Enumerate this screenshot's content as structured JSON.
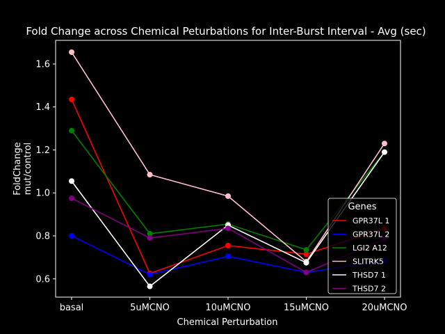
{
  "chart_data": {
    "type": "line",
    "title": "Fold Change across Chemical Peturbations for Inter-Burst Interval - Avg (sec)",
    "xlabel": "Chemical Perturbation",
    "ylabel": "FoldChange\nmut/control",
    "categories": [
      "basal",
      "5uMCNO",
      "10uMCNO",
      "15uMCNO",
      "20uMCNO"
    ],
    "ylim": [
      0.515,
      1.71
    ],
    "yticks": [
      0.6,
      0.8,
      1.0,
      1.2,
      1.4,
      1.6
    ],
    "ytick_labels": [
      "0.6",
      "0.8",
      "1.0",
      "1.2",
      "1.4",
      "1.6"
    ],
    "grid": false,
    "legend": {
      "title": "Genes",
      "position": "lower-right"
    },
    "series": [
      {
        "name": "GPR37L 1",
        "color": "#ff0000",
        "values": [
          1.435,
          0.625,
          0.755,
          0.715,
          0.835
        ]
      },
      {
        "name": "GPR37L 2",
        "color": "#0000ff",
        "values": [
          0.8,
          0.62,
          0.705,
          0.63,
          0.685
        ]
      },
      {
        "name": "LGI2 A12",
        "color": "#008000",
        "values": [
          1.29,
          0.81,
          0.855,
          0.735,
          1.19
        ]
      },
      {
        "name": "SLITRK5",
        "color": "#ffc0cb",
        "values": [
          1.655,
          1.085,
          0.985,
          0.68,
          1.23
        ]
      },
      {
        "name": "THSD7 1",
        "color": "#ffffff",
        "values": [
          1.055,
          0.565,
          0.85,
          0.675,
          1.19
        ]
      },
      {
        "name": "THSD7 2",
        "color": "#800080",
        "values": [
          0.975,
          0.79,
          0.835,
          0.63,
          0.785
        ]
      }
    ]
  }
}
